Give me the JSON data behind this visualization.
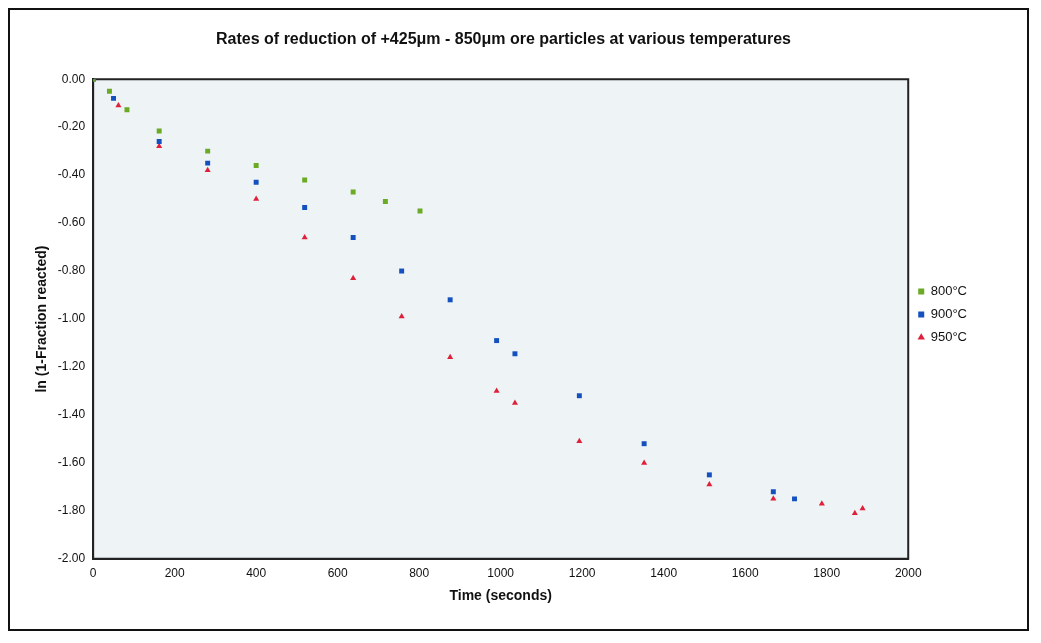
{
  "chart_data": {
    "type": "scatter",
    "title": "Rates of reduction of +425μm - 850μm ore particles at various temperatures",
    "xlabel": "Time (seconds)",
    "ylabel": "ln (1-Fraction reacted)",
    "xlim": [
      0,
      2000
    ],
    "xticks": [
      0,
      200,
      400,
      600,
      800,
      1000,
      1200,
      1400,
      1600,
      1800,
      2000
    ],
    "ylim": [
      -2,
      0
    ],
    "yticks": [
      {
        "value": 0,
        "label": "0.00"
      },
      {
        "value": -0.2,
        "label": "-0.20"
      },
      {
        "value": -0.4,
        "label": "-0.40"
      },
      {
        "value": -0.6,
        "label": "-0.60"
      },
      {
        "value": -0.8,
        "label": "-0.80"
      },
      {
        "value": -1,
        "label": "-1.00"
      },
      {
        "value": -1.2,
        "label": "-1.20"
      },
      {
        "value": -1.4,
        "label": "-1.40"
      },
      {
        "value": -1.6,
        "label": "-1.60"
      },
      {
        "value": -1.8,
        "label": "-1.80"
      },
      {
        "value": -2,
        "label": "-2.00"
      }
    ],
    "grid": false,
    "legend": "right",
    "series": [
      {
        "name": "800°C",
        "color": "#6aaa24",
        "marker": "square",
        "x": [
          0,
          40,
          83,
          162,
          281,
          400,
          519,
          638,
          717,
          802
        ],
        "values": [
          0,
          -0.05,
          -0.127,
          -0.216,
          -0.3,
          -0.36,
          -0.42,
          -0.47,
          -0.51,
          -0.55
        ]
      },
      {
        "name": "900°C",
        "color": "#1550c0",
        "marker": "square",
        "x": [
          0,
          50,
          162,
          281,
          400,
          519,
          638,
          757,
          876,
          990,
          1035,
          1193,
          1352,
          1512,
          1669,
          1721
        ],
        "values": [
          0,
          -0.08,
          -0.26,
          -0.35,
          -0.43,
          -0.535,
          -0.66,
          -0.8,
          -0.92,
          -1.09,
          -1.145,
          -1.32,
          -1.52,
          -1.65,
          -1.72,
          -1.75
        ]
      },
      {
        "name": "950°C",
        "color": "#e0203a",
        "marker": "triangle",
        "x": [
          0,
          62,
          162,
          281,
          400,
          519,
          638,
          757,
          876,
          990,
          1035,
          1193,
          1352,
          1512,
          1669,
          1788,
          1869,
          1888
        ],
        "values": [
          0,
          -0.11,
          -0.28,
          -0.38,
          -0.5,
          -0.66,
          -0.83,
          -0.99,
          -1.16,
          -1.3,
          -1.35,
          -1.51,
          -1.6,
          -1.69,
          -1.75,
          -1.77,
          -1.81,
          -1.79
        ]
      }
    ]
  }
}
